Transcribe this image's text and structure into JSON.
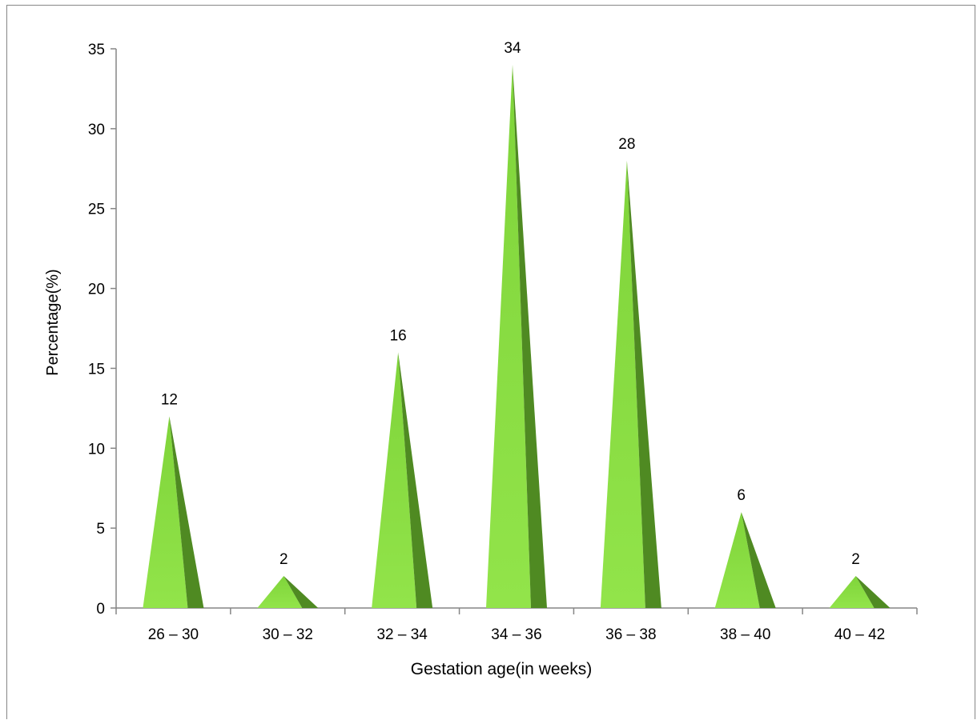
{
  "chart_data": {
    "type": "bar",
    "bar_shape": "pyramid",
    "categories": [
      "26 – 30",
      "30 – 32",
      "32 – 34",
      "34 – 36",
      "36 – 38",
      "38 – 40",
      "40 – 42"
    ],
    "values": [
      12,
      2,
      16,
      34,
      28,
      6,
      2
    ],
    "data_labels": [
      "12",
      "2",
      "16",
      "34",
      "28",
      "6",
      "2"
    ],
    "title": "",
    "xlabel": "Gestation age(in weeks)",
    "ylabel": "Percentage(%)",
    "ylim": [
      0,
      35
    ],
    "yticks": [
      "0",
      "5",
      "10",
      "15",
      "20",
      "25",
      "30",
      "35"
    ],
    "grid": false,
    "legend": "none",
    "colors": {
      "face_light": "#92E44A",
      "face_dark": "#4F8A22",
      "axis": "#868686"
    }
  }
}
